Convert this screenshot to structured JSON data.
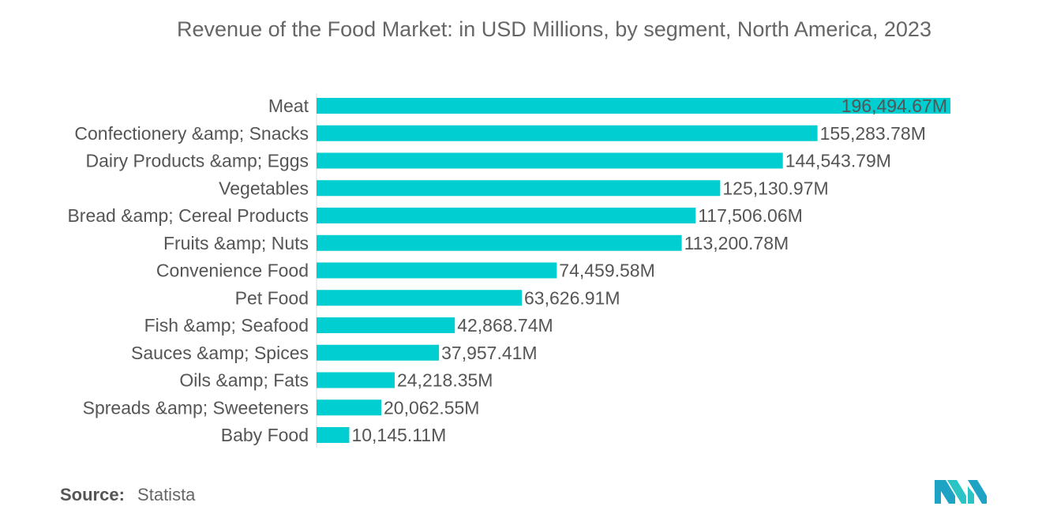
{
  "title": "Revenue of the Food Market: in USD Millions, by segment, North America, 2023",
  "source": {
    "label": "Source:",
    "value": "Statista"
  },
  "colors": {
    "bar": "#00ced1",
    "text": "#555555",
    "title": "#666666"
  },
  "chart_data": {
    "type": "bar",
    "orientation": "horizontal",
    "title": "Revenue of the Food Market: in USD Millions, by segment, North America, 2023",
    "xlabel": "",
    "ylabel": "",
    "categories": [
      "Meat",
      "Confectionery &amp; Snacks",
      "Dairy Products &amp; Eggs",
      "Vegetables",
      "Bread &amp; Cereal Products",
      "Fruits &amp; Nuts",
      "Convenience Food",
      "Pet Food",
      "Fish &amp; Seafood",
      "Sauces &amp; Spices",
      "Oils &amp; Fats",
      "Spreads &amp; Sweeteners",
      "Baby Food"
    ],
    "values": [
      196494.67,
      155283.78,
      144543.79,
      125130.97,
      117506.06,
      113200.78,
      74459.58,
      63626.91,
      42868.74,
      37957.41,
      24218.35,
      20062.55,
      10145.11
    ],
    "data_labels": [
      "196,494.67M",
      "155,283.78M",
      "144,543.79M",
      "125,130.97M",
      "117,506.06M",
      "113,200.78M",
      "74,459.58M",
      "63,626.91M",
      "42,868.74M",
      "37,957.41M",
      "24,218.35M",
      "20,062.55M",
      "10,145.11M"
    ],
    "xlim": [
      0,
      196494.67
    ],
    "grid": false,
    "legend": "none"
  }
}
